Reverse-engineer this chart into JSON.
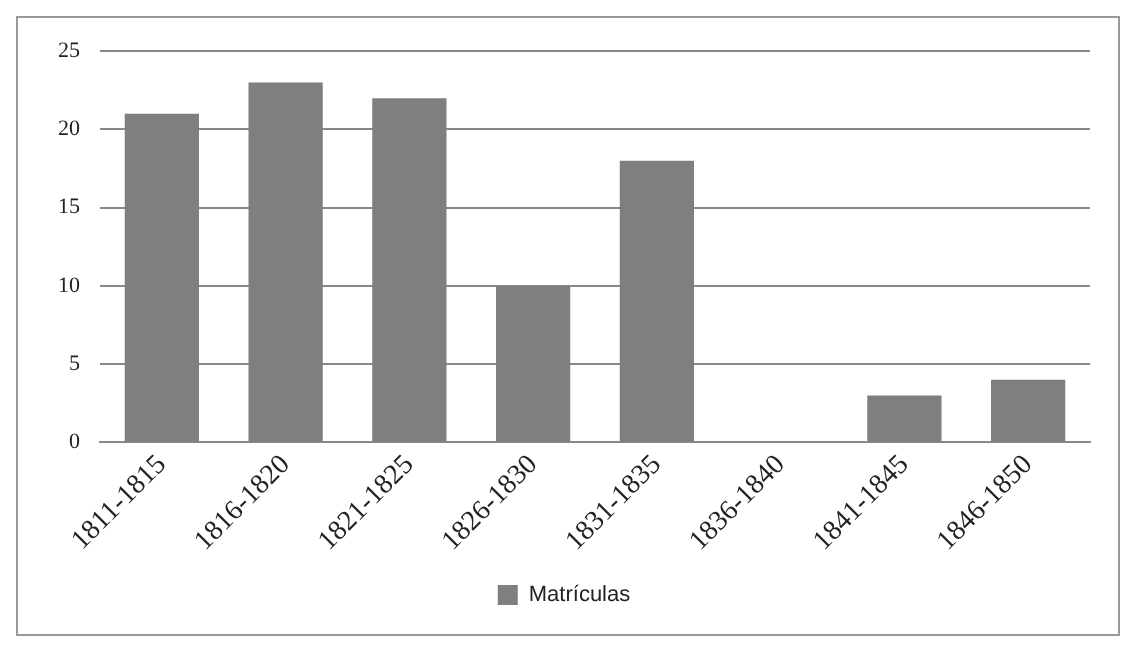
{
  "chart_data": {
    "type": "bar",
    "categories": [
      "1811-1815",
      "1816-1820",
      "1821-1825",
      "1826-1830",
      "1831-1835",
      "1836-1840",
      "1841-1845",
      "1846-1850"
    ],
    "series": [
      {
        "name": "Matrículas",
        "color": "#7f7f7f",
        "values": [
          21,
          23,
          22,
          10,
          18,
          0,
          3,
          4
        ]
      }
    ],
    "ylim": [
      0,
      25
    ],
    "yticks": [
      0,
      5,
      10,
      15,
      20,
      25
    ],
    "grid": "y",
    "legend": "bottom"
  }
}
